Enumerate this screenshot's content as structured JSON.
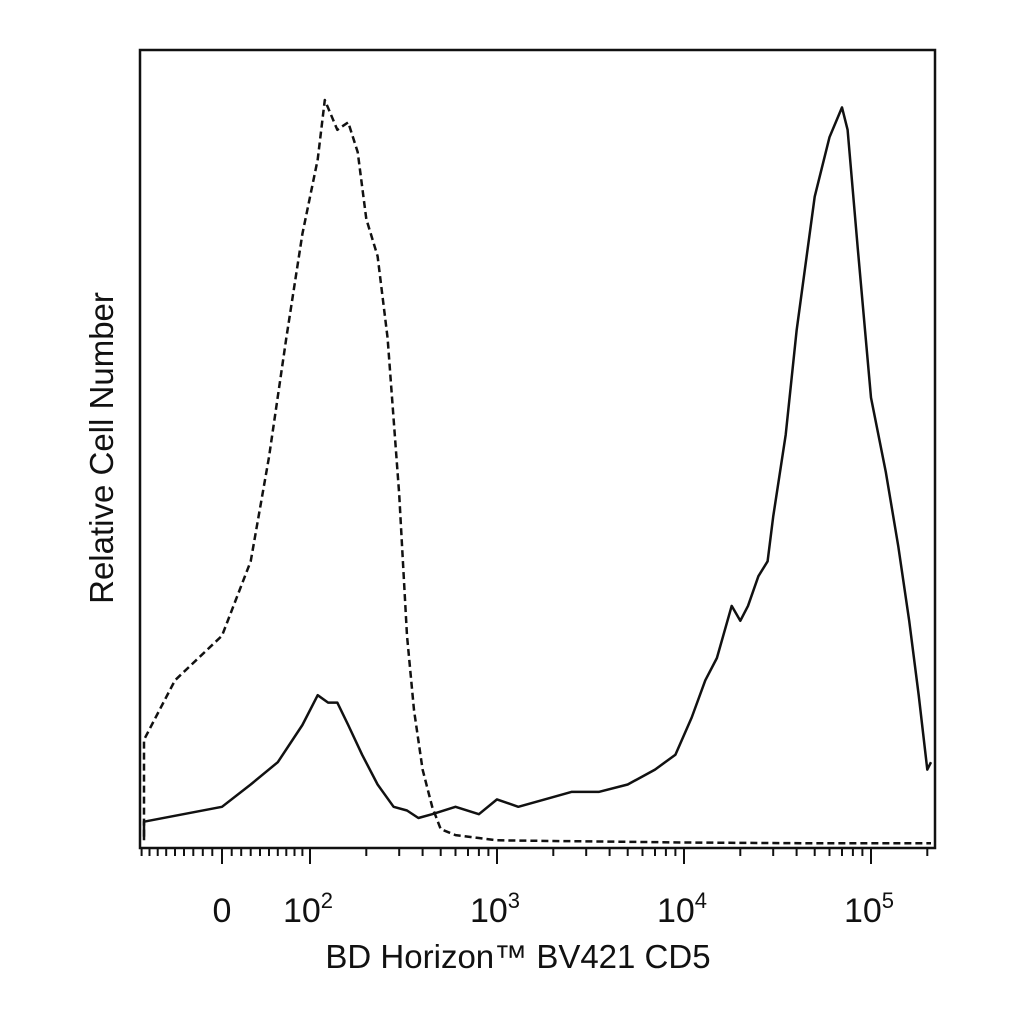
{
  "chart_data": {
    "type": "line",
    "title": "",
    "xlabel": "BD Horizon™ BV421 CD5",
    "ylabel": "Relative Cell Number",
    "x_scale": "biexponential (logicle)",
    "x_ticks": [
      {
        "value": 0,
        "base": "0",
        "exp": ""
      },
      {
        "value": 100,
        "base": "10",
        "exp": "2"
      },
      {
        "value": 1000,
        "base": "10",
        "exp": "3"
      },
      {
        "value": 10000,
        "base": "10",
        "exp": "4"
      },
      {
        "value": 100000,
        "base": "10",
        "exp": "5"
      }
    ],
    "y_ticks_shown": false,
    "grid": false,
    "legend": "none",
    "ylim": [
      0,
      100
    ],
    "series": [
      {
        "style": "dashed",
        "color": "#111111",
        "x": [
          -300,
          -150,
          -50,
          0,
          30,
          50,
          70,
          90,
          110,
          120,
          140,
          160,
          180,
          200,
          230,
          260,
          300,
          330,
          360,
          400,
          450,
          500,
          600,
          800,
          1000,
          2000,
          5000,
          10000,
          50000,
          100000,
          220000
        ],
        "y": [
          1,
          14,
          22,
          28,
          38,
          52,
          68,
          82,
          92,
          100,
          96,
          97,
          93,
          84,
          79,
          68,
          47,
          28,
          18,
          10,
          5,
          2,
          1.2,
          0.8,
          0.5,
          0.4,
          0.3,
          0.2,
          0.1,
          0.1,
          0.1
        ]
      },
      {
        "style": "solid",
        "color": "#111111",
        "x": [
          -300,
          -100,
          0,
          30,
          60,
          90,
          110,
          125,
          140,
          160,
          190,
          230,
          280,
          330,
          380,
          450,
          600,
          800,
          1000,
          1300,
          1800,
          2500,
          3500,
          5000,
          7000,
          9000,
          11000,
          13000,
          15000,
          18000,
          20000,
          22000,
          25000,
          28000,
          30000,
          35000,
          40000,
          50000,
          60000,
          70000,
          75000,
          85000,
          100000,
          120000,
          140000,
          160000,
          180000,
          200000,
          230000
        ],
        "y": [
          0.5,
          3,
          5,
          8,
          11,
          16,
          20,
          19,
          19,
          16,
          12,
          8,
          5,
          4.5,
          3.5,
          4,
          5,
          4,
          6,
          5,
          6,
          7,
          7,
          8,
          10,
          12,
          17,
          22,
          25,
          32,
          30,
          32,
          36,
          38,
          44,
          55,
          69,
          87,
          95,
          99,
          96,
          80,
          60,
          50,
          40,
          30,
          20,
          10,
          11
        ]
      }
    ]
  }
}
